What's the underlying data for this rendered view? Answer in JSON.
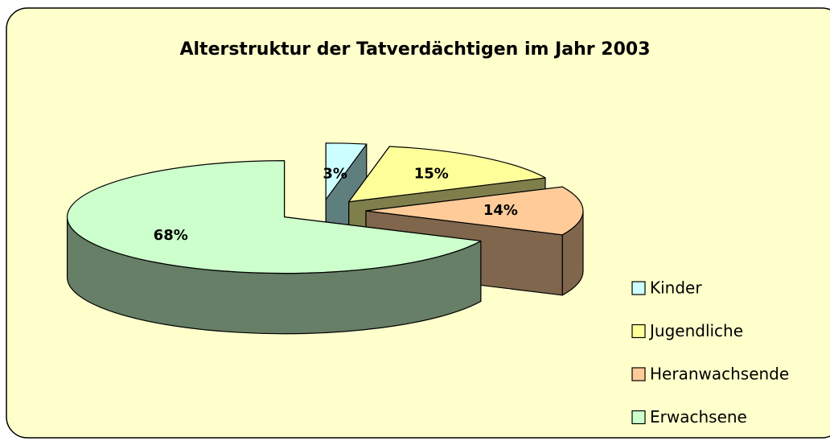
{
  "chart_data": {
    "type": "pie3d",
    "title": "Alterstruktur der Tatverdächtigen im Jahr 2003",
    "categories": [
      "Kinder",
      "Jugendliche",
      "Heranwachsende",
      "Erwachsene"
    ],
    "values": [
      3,
      15,
      14,
      68
    ],
    "value_labels": [
      "3%",
      "15%",
      "14%",
      "68%"
    ],
    "colors": [
      "#ccffff",
      "#ffff99",
      "#ffcc99",
      "#ccffcc"
    ],
    "side_colors": [
      "#5f7f7f",
      "#7f7f4c",
      "#7f664c",
      "#667f66"
    ],
    "legend": "right"
  }
}
